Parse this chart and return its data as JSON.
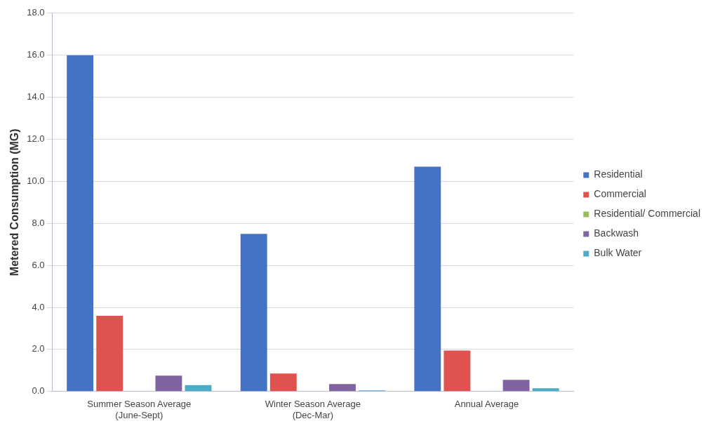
{
  "chart_data": {
    "type": "bar",
    "ylabel": "Metered Consumption (MG)",
    "categories": [
      "Summer Season Average\n(June-Sept)",
      "Winter Season Average\n(Dec-Mar)",
      "Annual Average"
    ],
    "series": [
      {
        "name": "Residential",
        "color": "#4472c4",
        "values": [
          16.0,
          7.5,
          10.7
        ]
      },
      {
        "name": "Commercial",
        "color": "#e0524f",
        "values": [
          3.6,
          0.85,
          1.95
        ]
      },
      {
        "name": "Residential/ Commercial",
        "color": "#9bbb59",
        "values": [
          0,
          0,
          0
        ]
      },
      {
        "name": "Backwash",
        "color": "#8064a2",
        "values": [
          0.75,
          0.35,
          0.55
        ]
      },
      {
        "name": "Bulk Water",
        "color": "#4bacc6",
        "values": [
          0.3,
          0.05,
          0.15
        ]
      }
    ],
    "ylim": [
      0,
      18
    ],
    "yticks": [
      {
        "value": 0,
        "label": "0.0"
      },
      {
        "value": 2,
        "label": "2.0"
      },
      {
        "value": 4,
        "label": "4.0"
      },
      {
        "value": 6,
        "label": "6.0"
      },
      {
        "value": 8,
        "label": "8.0"
      },
      {
        "value": 10,
        "label": "10.0"
      },
      {
        "value": 12,
        "label": "12.0"
      },
      {
        "value": 14,
        "label": "14.0"
      },
      {
        "value": 16,
        "label": "16.0"
      },
      {
        "value": 18,
        "label": "18.0"
      }
    ],
    "grid": "y",
    "legend": "right"
  }
}
